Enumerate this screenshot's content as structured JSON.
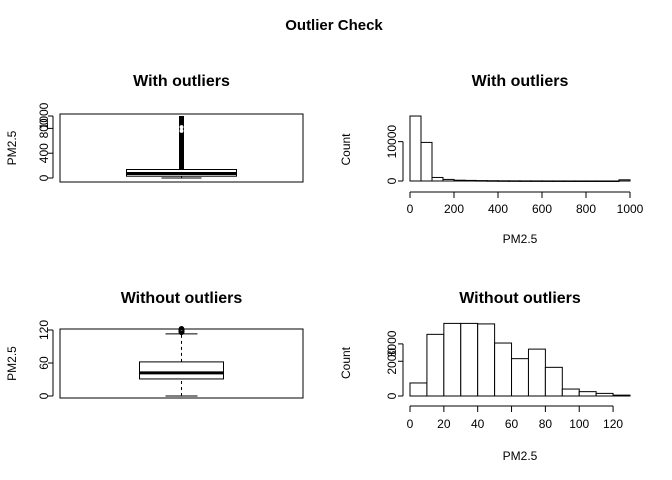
{
  "figure": {
    "title": "Outlier Check"
  },
  "chart_data": [
    {
      "type": "box",
      "title": "With outliers",
      "xlabel": "",
      "ylabel": "PM2.5",
      "ylim": [
        0,
        1000
      ],
      "y_ticks": [
        "0",
        "400",
        "800",
        "1000"
      ],
      "stats": {
        "min": 0,
        "q1": 29,
        "median": 72,
        "q3": 137,
        "whisker_high": 1000
      },
      "outliers_visible": true
    },
    {
      "type": "bar",
      "title": "With outliers",
      "xlabel": "PM2.5",
      "ylabel": "Count",
      "xlim": [
        0,
        1000
      ],
      "ylim": [
        0,
        16000
      ],
      "x_ticks": [
        "0",
        "200",
        "400",
        "600",
        "800",
        "1000"
      ],
      "y_ticks": [
        "0",
        "10000"
      ],
      "bin_width": 50,
      "counts": [
        16500,
        9800,
        900,
        400,
        200,
        150,
        100,
        70,
        50,
        40,
        30,
        25,
        20,
        15,
        12,
        10,
        10,
        8,
        6,
        300
      ]
    },
    {
      "type": "box",
      "title": "Without outliers",
      "xlabel": "",
      "ylabel": "PM2.5",
      "ylim": [
        0,
        120
      ],
      "y_ticks": [
        "0",
        "60",
        "120"
      ],
      "stats": {
        "min": 0,
        "q1": 31,
        "median": 42,
        "q3": 62,
        "whisker_high": 113
      },
      "outliers_high": [
        116,
        117,
        118,
        119,
        120,
        121,
        122
      ]
    },
    {
      "type": "bar",
      "title": "Without outliers",
      "xlabel": "PM2.5",
      "ylabel": "Count",
      "xlim": [
        0,
        130
      ],
      "ylim": [
        0,
        3800
      ],
      "x_ticks": [
        "0",
        "20",
        "40",
        "60",
        "80",
        "100",
        "120"
      ],
      "y_ticks": [
        "0",
        "2000",
        "3000"
      ],
      "bin_width": 10,
      "counts": [
        750,
        3550,
        4400,
        4450,
        4150,
        3050,
        2150,
        2700,
        1650,
        400,
        250,
        150,
        50
      ]
    }
  ]
}
